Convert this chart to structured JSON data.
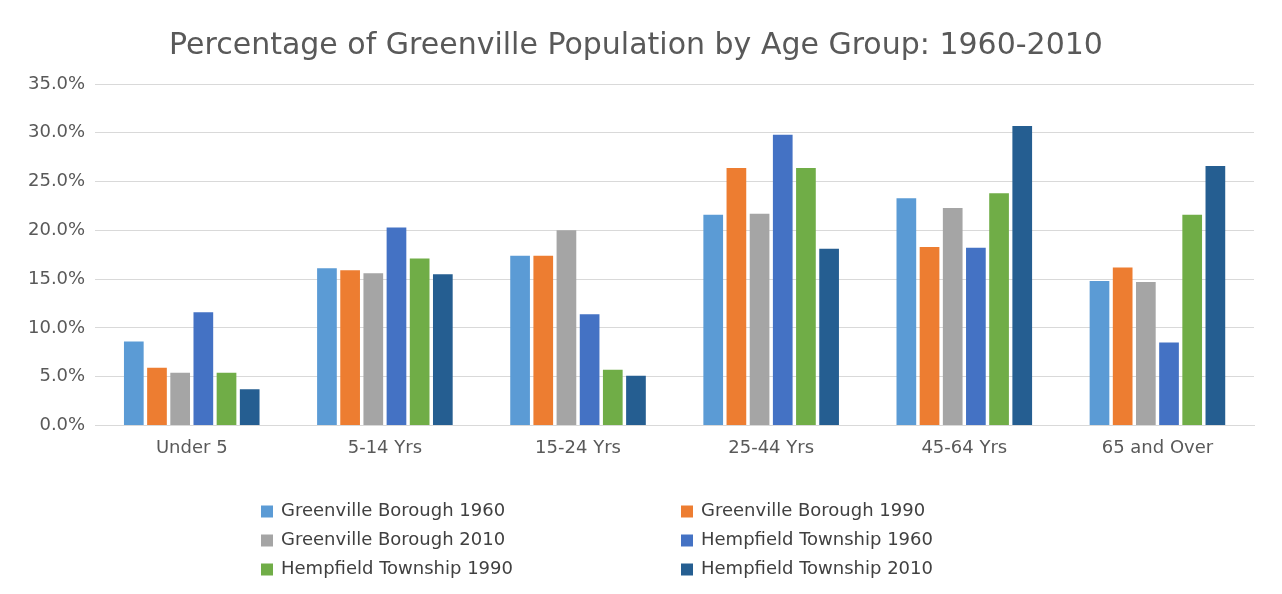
{
  "chart_data": {
    "type": "bar",
    "title": "Percentage of Greenville Population by Age Group: 1960-2010",
    "categories": [
      "Under 5",
      "5-14 Yrs",
      "15-24 Yrs",
      "25-44 Yrs",
      "45-64 Yrs",
      "65 and Over"
    ],
    "series": [
      {
        "name": "Greenville Borough 1960",
        "color": "#5b9bd5",
        "values": [
          8.6,
          16.1,
          17.4,
          21.6,
          23.3,
          14.8
        ]
      },
      {
        "name": "Greenville Borough 1990",
        "color": "#ed7d31",
        "values": [
          5.9,
          15.9,
          17.4,
          26.4,
          18.3,
          16.2
        ]
      },
      {
        "name": "Greenville Borough 2010",
        "color": "#a5a5a5",
        "values": [
          5.4,
          15.6,
          20.0,
          21.7,
          22.3,
          14.7
        ]
      },
      {
        "name": "Hempfield Township 1960",
        "color": "#4472c4",
        "values": [
          11.6,
          20.3,
          11.4,
          29.8,
          18.2,
          8.5
        ]
      },
      {
        "name": "Hempfield Township 1990",
        "color": "#70ad47",
        "values": [
          5.4,
          17.1,
          5.7,
          26.4,
          23.8,
          21.6
        ]
      },
      {
        "name": "Hempfield Township 2010",
        "color": "#255e91",
        "values": [
          3.7,
          15.5,
          5.1,
          18.1,
          30.7,
          26.6
        ]
      }
    ],
    "ylim": [
      0,
      35
    ],
    "yticks": [
      {
        "value": 0,
        "label": "0.0%"
      },
      {
        "value": 5,
        "label": "5.0%"
      },
      {
        "value": 10,
        "label": "10.0%"
      },
      {
        "value": 15,
        "label": "15.0%"
      },
      {
        "value": 20,
        "label": "20.0%"
      },
      {
        "value": 25,
        "label": "25.0%"
      },
      {
        "value": 30,
        "label": "30.0%"
      },
      {
        "value": 35,
        "label": "35.0%"
      }
    ],
    "grid": "y",
    "legend": "bottom"
  }
}
